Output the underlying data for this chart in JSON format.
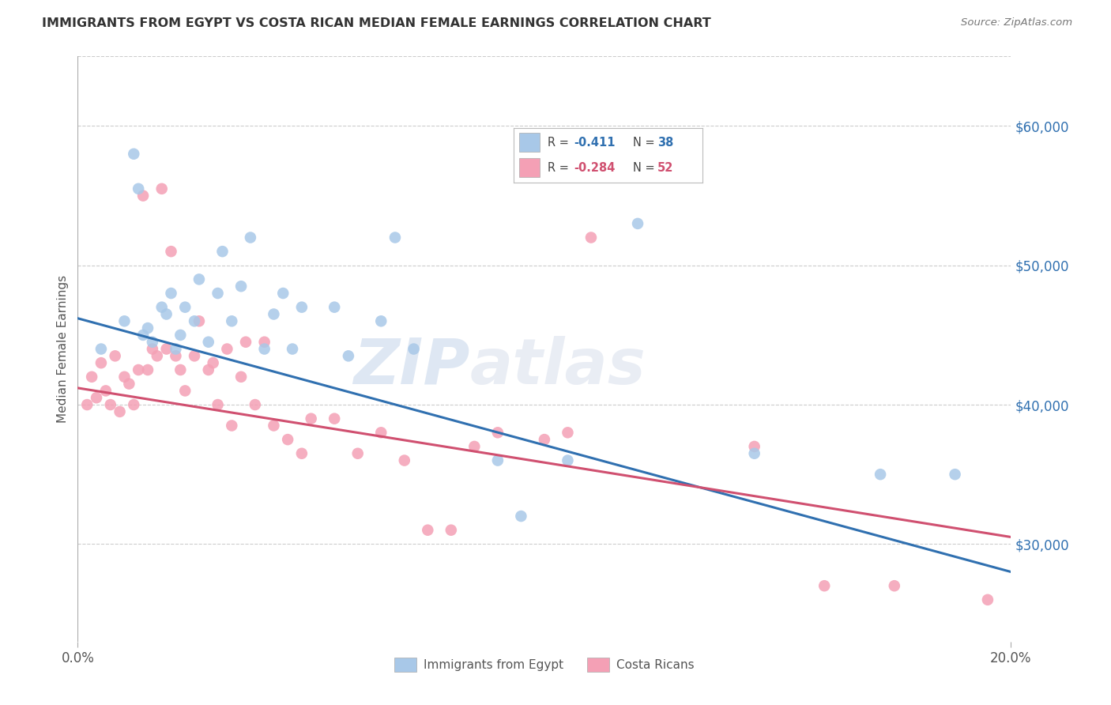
{
  "title": "IMMIGRANTS FROM EGYPT VS COSTA RICAN MEDIAN FEMALE EARNINGS CORRELATION CHART",
  "source": "Source: ZipAtlas.com",
  "ylabel": "Median Female Earnings",
  "right_yticks": [
    "$60,000",
    "$50,000",
    "$40,000",
    "$30,000"
  ],
  "right_ytick_values": [
    60000,
    50000,
    40000,
    30000
  ],
  "legend_label1": "Immigrants from Egypt",
  "legend_label2": "Costa Ricans",
  "legend_r1_val": "-0.411",
  "legend_n1_val": "38",
  "legend_r2_val": "-0.284",
  "legend_n2_val": "52",
  "blue_color": "#A8C8E8",
  "pink_color": "#F4A0B5",
  "blue_line_color": "#3070B0",
  "pink_line_color": "#D05070",
  "watermark_zip": "ZIP",
  "watermark_atlas": "atlas",
  "xlim": [
    0.0,
    0.2
  ],
  "ylim": [
    23000,
    65000
  ],
  "blue_x": [
    0.005,
    0.01,
    0.012,
    0.013,
    0.014,
    0.015,
    0.016,
    0.018,
    0.019,
    0.02,
    0.021,
    0.022,
    0.023,
    0.025,
    0.026,
    0.028,
    0.03,
    0.031,
    0.033,
    0.035,
    0.037,
    0.04,
    0.042,
    0.044,
    0.046,
    0.048,
    0.055,
    0.058,
    0.065,
    0.068,
    0.072,
    0.09,
    0.095,
    0.105,
    0.12,
    0.145,
    0.172,
    0.188
  ],
  "blue_y": [
    44000,
    46000,
    58000,
    55500,
    45000,
    45500,
    44500,
    47000,
    46500,
    48000,
    44000,
    45000,
    47000,
    46000,
    49000,
    44500,
    48000,
    51000,
    46000,
    48500,
    52000,
    44000,
    46500,
    48000,
    44000,
    47000,
    47000,
    43500,
    46000,
    52000,
    44000,
    36000,
    32000,
    36000,
    53000,
    36500,
    35000,
    35000
  ],
  "pink_x": [
    0.002,
    0.003,
    0.004,
    0.005,
    0.006,
    0.007,
    0.008,
    0.009,
    0.01,
    0.011,
    0.012,
    0.013,
    0.014,
    0.015,
    0.016,
    0.017,
    0.018,
    0.019,
    0.02,
    0.021,
    0.022,
    0.023,
    0.025,
    0.026,
    0.028,
    0.029,
    0.03,
    0.032,
    0.033,
    0.035,
    0.036,
    0.038,
    0.04,
    0.042,
    0.045,
    0.048,
    0.05,
    0.055,
    0.06,
    0.065,
    0.07,
    0.075,
    0.08,
    0.085,
    0.09,
    0.1,
    0.105,
    0.11,
    0.145,
    0.16,
    0.175,
    0.195
  ],
  "pink_y": [
    40000,
    42000,
    40500,
    43000,
    41000,
    40000,
    43500,
    39500,
    42000,
    41500,
    40000,
    42500,
    55000,
    42500,
    44000,
    43500,
    55500,
    44000,
    51000,
    43500,
    42500,
    41000,
    43500,
    46000,
    42500,
    43000,
    40000,
    44000,
    38500,
    42000,
    44500,
    40000,
    44500,
    38500,
    37500,
    36500,
    39000,
    39000,
    36500,
    38000,
    36000,
    31000,
    31000,
    37000,
    38000,
    37500,
    38000,
    52000,
    37000,
    27000,
    27000,
    26000
  ]
}
